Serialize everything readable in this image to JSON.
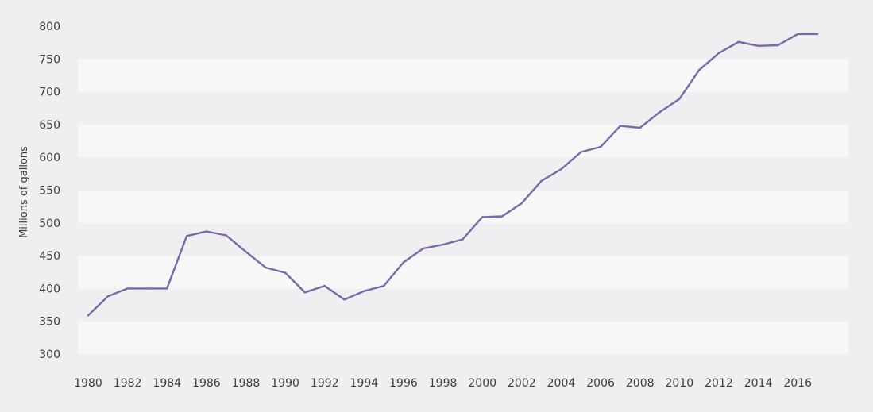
{
  "chart_data": {
    "type": "line",
    "title": "",
    "xlabel": "",
    "ylabel": "Millions of gallons",
    "xlim": [
      1980,
      2017
    ],
    "ylim": [
      300,
      800
    ],
    "yticks": [
      300,
      350,
      400,
      450,
      500,
      550,
      600,
      650,
      700,
      750,
      800
    ],
    "xticks": [
      1980,
      1982,
      1984,
      1986,
      1988,
      1990,
      1992,
      1994,
      1996,
      1998,
      2000,
      2002,
      2004,
      2006,
      2008,
      2010,
      2012,
      2014,
      2016
    ],
    "grid": "alternating horizontal bands",
    "legend": "none",
    "colors": {
      "line": "#7b68a8",
      "background": "#efefef",
      "band_light": "#f7f7f8",
      "band_dark": "#efeff1",
      "text": "#3c3c44"
    },
    "series": [
      {
        "x": [
          1980,
          1981,
          1982,
          1983,
          1984,
          1985,
          1986,
          1987,
          1988,
          1989,
          1990,
          1991,
          1992,
          1993,
          1994,
          1995,
          1996,
          1997,
          1998,
          1999,
          2000,
          2001,
          2002,
          2003,
          2004,
          2005,
          2006,
          2007,
          2008,
          2009,
          2010,
          2011,
          2012,
          2013,
          2014,
          2015,
          2016,
          2017
        ],
        "values": [
          359,
          388,
          400,
          400,
          400,
          480,
          487,
          481,
          456,
          432,
          424,
          394,
          404,
          383,
          396,
          404,
          440,
          461,
          467,
          475,
          509,
          510,
          530,
          564,
          582,
          608,
          616,
          648,
          645,
          669,
          689,
          733,
          759,
          776,
          770,
          771,
          788,
          788
        ]
      }
    ]
  }
}
